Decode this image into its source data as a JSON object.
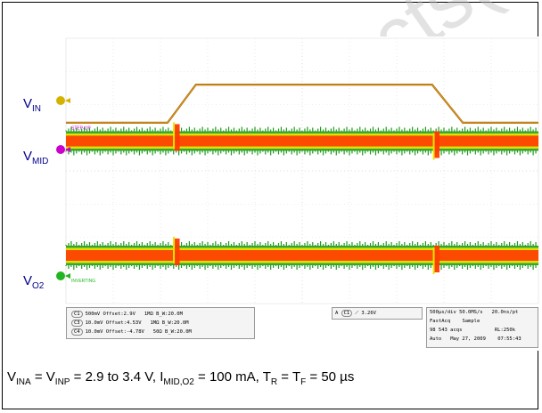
{
  "labels": {
    "v_in": [
      "V",
      "IN"
    ],
    "v_mid": [
      "V",
      "MID"
    ],
    "v_o2": [
      "V",
      "O2"
    ]
  },
  "scope": {
    "ch_tags": [
      "STEP-UP",
      "INVERTING"
    ],
    "channels": [
      {
        "id": "C1",
        "scale": "500mV",
        "offset": "Offset:2.9V",
        "imp": "1MΩ",
        "bw": "B_W:20.0M"
      },
      {
        "id": "C3",
        "scale": "10.0mV",
        "offset": "Offset:4.53V",
        "imp": "1MΩ",
        "bw": "B_W:20.0M"
      },
      {
        "id": "C4",
        "scale": "10.0mV",
        "offset": "Offset:-4.78V",
        "imp": "50Ω",
        "bw": "B_W:20.0M"
      }
    ],
    "trigger": {
      "source": "A",
      "channel": "C1",
      "level": "3.26V"
    },
    "timebase": "500µs/div  50.0MS/s",
    "sample_interval": "20.0ns/pt",
    "mode": "FastAcq",
    "sample": "Sample",
    "acqs": "98 543 acqs",
    "record_length": "RL:250k",
    "auto": "Auto",
    "date": "May 27, 2009",
    "time": "07:55:43"
  },
  "caption": {
    "parts": [
      "V",
      "INA",
      " = V",
      "INP",
      " = 2.9 to 3.4 V, I",
      "MID,O2",
      " = 100 mA, T",
      "R",
      " = T",
      "F",
      " = 50 µs"
    ]
  },
  "watermark": "Products(s) - O",
  "chart_data": {
    "type": "line",
    "series": [
      {
        "name": "V_IN",
        "x_div": [
          0,
          2.15,
          2.75,
          7.75,
          8.4,
          10
        ],
        "y_div": [
          -0.35,
          -0.35,
          1.0,
          1.0,
          -0.35,
          -0.35
        ]
      },
      {
        "name": "V_MID",
        "x_div": [
          0,
          2.35,
          2.45,
          7.85,
          7.95,
          10
        ],
        "y_div": [
          0,
          0,
          0,
          0,
          0,
          0
        ],
        "transients_at_div": [
          2.35,
          7.85
        ]
      },
      {
        "name": "V_O2",
        "x_div": [
          0,
          2.35,
          2.45,
          7.85,
          7.95,
          10
        ],
        "y_div": [
          0,
          0,
          0,
          0,
          0,
          0
        ],
        "transients_at_div": [
          2.35,
          7.85
        ]
      }
    ],
    "x_divisions": 10,
    "y_divisions": 8,
    "grid": true,
    "colors": {
      "v_in": "#b5611c",
      "v_mid": "#ff3b00",
      "v_o2": "#ff3b00",
      "green_edge": "#1e9a1e",
      "yellow_band": "#e6e600",
      "grid": "#dddddd",
      "label": "#00008b",
      "marker_in": "#d4b200",
      "marker_mid": "#cc00cc",
      "marker_o2": "#22b422"
    }
  }
}
